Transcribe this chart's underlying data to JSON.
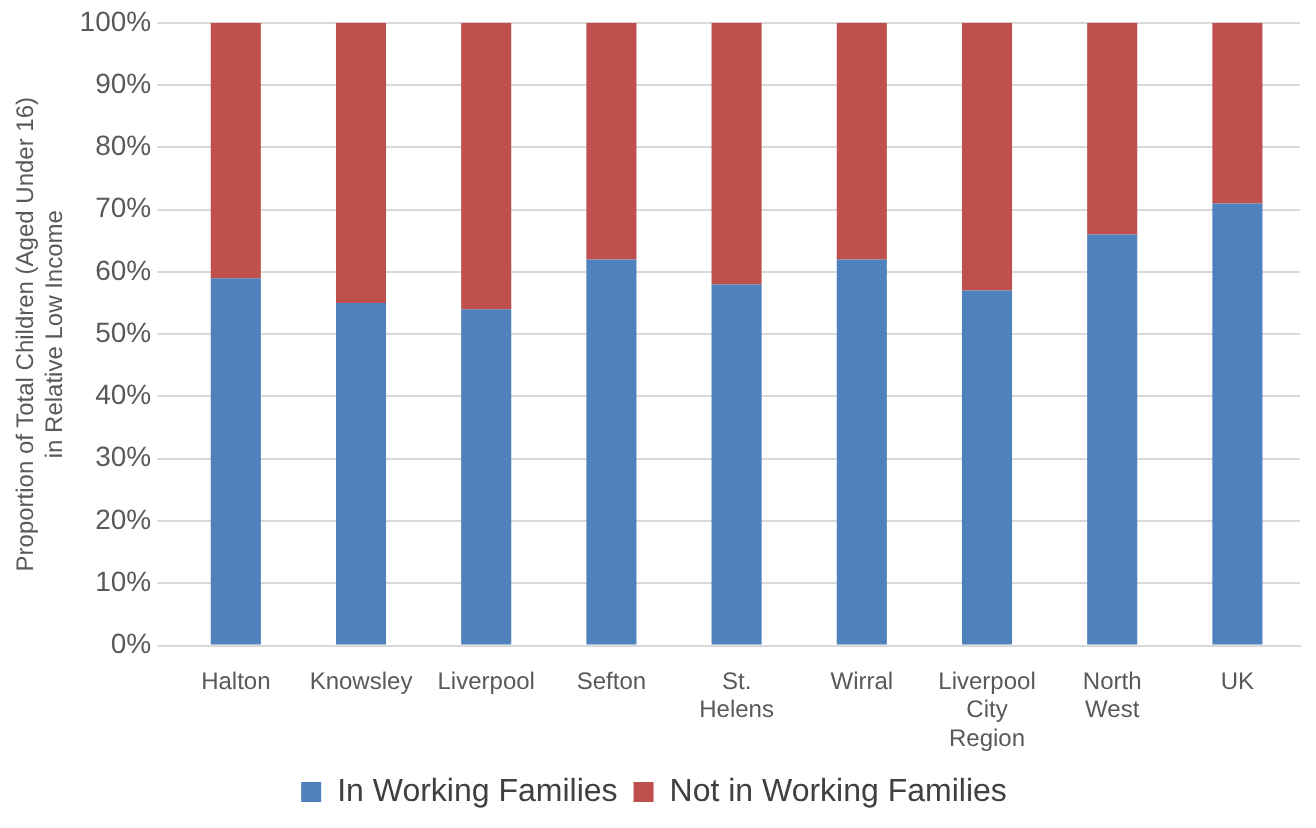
{
  "chart_data": {
    "type": "bar",
    "stacked": true,
    "ylabel": "Proportion of Total Children (Aged Under 16) in Relative Low Income",
    "categories": [
      "Halton",
      "Knowsley",
      "Liverpool",
      "Sefton",
      "St. Helens",
      "Wirral",
      "Liverpool City Region",
      "North West",
      "UK"
    ],
    "series": [
      {
        "name": "In Working Families",
        "color": "#4f81bd",
        "values": [
          59,
          55,
          54,
          62,
          58,
          62,
          57,
          66,
          71
        ]
      },
      {
        "name": "Not in Working Families",
        "color": "#c0504d",
        "values": [
          41,
          45,
          46,
          38,
          42,
          38,
          43,
          34,
          29
        ]
      }
    ],
    "ylim": [
      0,
      100
    ],
    "yticks": [
      {
        "value": 0,
        "label": "0%"
      },
      {
        "value": 10,
        "label": "10%"
      },
      {
        "value": 20,
        "label": "20%"
      },
      {
        "value": 30,
        "label": "30%"
      },
      {
        "value": 40,
        "label": "40%"
      },
      {
        "value": 50,
        "label": "50%"
      },
      {
        "value": 60,
        "label": "60%"
      },
      {
        "value": 70,
        "label": "70%"
      },
      {
        "value": 80,
        "label": "80%"
      },
      {
        "value": 90,
        "label": "90%"
      },
      {
        "value": 100,
        "label": "100%"
      }
    ],
    "grid": "y",
    "legend": "bottom"
  }
}
